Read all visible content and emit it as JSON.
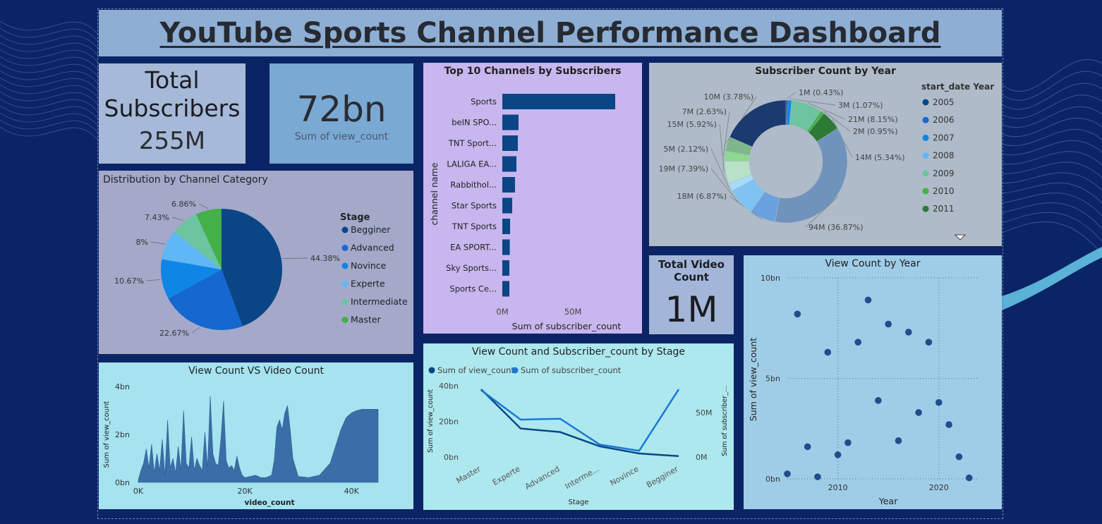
{
  "dashboard": {
    "title": "YouTube Sports Channel Performance Dashboard"
  },
  "cards": {
    "total_subscribers": {
      "label_line1": "Total",
      "label_line2": "Subscribers",
      "value": "255M"
    },
    "views": {
      "value": "72bn",
      "label": "Sum of view_count"
    },
    "total_video": {
      "label_line1": "Total Video",
      "label_line2": "Count",
      "value": "1M"
    }
  },
  "colors": {
    "navy": "#0a4685",
    "blue": "#1568cf",
    "mid_blue": "#0f86e6",
    "light_blue": "#60b6f4",
    "teal": "#62c095",
    "green": "#43b048",
    "dark_green": "#2d7a34"
  },
  "chart_data": [
    {
      "id": "category_pie",
      "type": "pie",
      "title": "Distribution by Channel Category",
      "legend_title": "Stage",
      "legend_position": "right",
      "labels": [
        "Begginer",
        "Advanced",
        "Novince",
        "Experte",
        "Intermediate",
        "Master"
      ],
      "values": [
        44.38,
        22.67,
        10.67,
        8,
        7.43,
        6.86
      ],
      "value_labels": [
        "44.38%",
        "22.67%",
        "10.67%",
        "8%",
        "7.43%",
        "6.86%"
      ],
      "colors": [
        "#0a4685",
        "#1568cf",
        "#0f86e6",
        "#5fb8f5",
        "#6cc4a0",
        "#43b048"
      ]
    },
    {
      "id": "top10_bar",
      "type": "bar",
      "orientation": "horizontal",
      "title": "Top 10 Channels by Subscribers",
      "xlabel": "Sum of subscriber_count",
      "ylabel": "channel name",
      "categories": [
        "Sports",
        "beIN SPO...",
        "TNT Sport...",
        "LALIGA EA...",
        "Rabbithol...",
        "Star Sports",
        "TNT Sports",
        "EA SPORT...",
        "Sky Sports...",
        "Sports Ce..."
      ],
      "values": [
        80,
        11.5,
        11,
        10,
        9,
        7,
        5.5,
        5.3,
        5,
        5
      ],
      "xlim": [
        0,
        85
      ],
      "xticks": [
        0,
        50
      ],
      "xtick_labels": [
        "0M",
        "50M"
      ],
      "color": "#0a4685"
    },
    {
      "id": "year_donut",
      "type": "pie",
      "style": "donut",
      "title": "Subscriber Count by Year",
      "legend_title": "start_date Year",
      "legend_position": "right",
      "legend": [
        "2005",
        "2006",
        "2007",
        "2008",
        "2009",
        "2010",
        "2011"
      ],
      "legend_colors": [
        "#0a4685",
        "#1568cf",
        "#0f86e6",
        "#60b6f4",
        "#6cc4a0",
        "#43b048",
        "#2d7a34"
      ],
      "values": [
        0.43,
        1.07,
        8.15,
        0.95,
        5.34,
        36.87,
        6.87,
        7.39,
        2.12,
        5.92,
        2.63,
        3.78,
        18.48
      ],
      "value_labels": [
        "1M (0.43%)",
        "3M (1.07%)",
        "21M (8.15%)",
        "2M (0.95%)",
        "14M (5.34%)",
        "94M (36.87%)",
        "18M (6.87%)",
        "19M (7.39%)",
        "5M (2.12%)",
        "15M (5.92%)",
        "7M (2.63%)",
        "10M (3.78%)",
        ""
      ],
      "colors": [
        "#0a4685",
        "#0f86e6",
        "#6cc4a0",
        "#43b048",
        "#2d7a34",
        "#6f93bb",
        "#6aa1df",
        "#7fc3f2",
        "#a8dbf7",
        "#b8e1c8",
        "#8fd88f",
        "#7db88a",
        "#1b3a6e"
      ]
    },
    {
      "id": "view_vs_video_area",
      "type": "area",
      "title": "View Count VS Video Count",
      "xlabel": "video_count",
      "ylabel": "Sum of view_count",
      "xlim": [
        0,
        45000
      ],
      "ylim": [
        0,
        4
      ],
      "xticks": [
        0,
        20000,
        40000
      ],
      "xtick_labels": [
        "0K",
        "20K",
        "40K"
      ],
      "yticks": [
        0,
        2,
        4
      ],
      "ytick_labels": [
        "0bn",
        "2bn",
        "4bn"
      ],
      "x": [
        0,
        500,
        1000,
        1500,
        2000,
        2500,
        3000,
        3500,
        4000,
        4500,
        5000,
        5500,
        6000,
        6500,
        7000,
        7500,
        8000,
        8500,
        9000,
        9500,
        10000,
        10500,
        11000,
        11500,
        12000,
        12500,
        13000,
        13500,
        14000,
        14500,
        15000,
        15500,
        16000,
        16500,
        17000,
        17500,
        18000,
        18500,
        19000,
        19500,
        20000,
        21000,
        22000,
        23000,
        24000,
        25000,
        25500,
        26000,
        26500,
        27000,
        27500,
        28000,
        28500,
        29000,
        30000,
        32000,
        34000,
        36000,
        37000,
        38000,
        39000,
        40000,
        41000,
        42000,
        43000,
        45000
      ],
      "y": [
        0.1,
        0.5,
        0.8,
        1.4,
        0.6,
        1.6,
        0.4,
        1.2,
        0.5,
        1.8,
        0.3,
        2.6,
        0.6,
        1.0,
        0.4,
        1.5,
        0.5,
        3.0,
        0.8,
        0.6,
        1.9,
        0.5,
        1.0,
        0.7,
        0.5,
        2.1,
        0.6,
        3.6,
        1.2,
        0.8,
        0.7,
        1.8,
        3.4,
        0.9,
        0.6,
        0.7,
        0.5,
        1.1,
        0.6,
        0.3,
        0.2,
        0.25,
        0.3,
        0.2,
        0.2,
        0.3,
        0.9,
        2.3,
        2.6,
        2.2,
        2.9,
        3.2,
        2.2,
        1.0,
        0.25,
        0.2,
        0.3,
        0.8,
        1.5,
        2.2,
        2.7,
        2.9,
        3.0,
        3.05,
        3.05,
        3.05
      ],
      "color": "#3b6ea7"
    },
    {
      "id": "stage_lines",
      "type": "line",
      "title": "View Count and Subscriber_count by Stage",
      "xlabel": "Stage",
      "ylabel": "Sum of view_count",
      "y2label": "Sum of subscriber_...",
      "legend_position": "top-left",
      "categories": [
        "Master",
        "Experte",
        "Advanced",
        "Interme...",
        "Novince",
        "Begginer"
      ],
      "series": [
        {
          "name": "Sum of view_count",
          "values": [
            38,
            16,
            14,
            6,
            2,
            0.5
          ],
          "axis": "left",
          "color": "#0a4685"
        },
        {
          "name": "Sum of subscriber_count",
          "values": [
            75,
            42,
            43,
            14,
            7,
            76
          ],
          "axis": "right",
          "color": "#1a78d4"
        }
      ],
      "ylim": [
        0,
        40
      ],
      "yticks": [
        0,
        20,
        40
      ],
      "ytick_labels": [
        "0bn",
        "20bn",
        "40bn"
      ],
      "y2lim": [
        0,
        80
      ],
      "y2ticks": [
        0,
        50
      ],
      "y2tick_labels": [
        "0M",
        "50M"
      ]
    },
    {
      "id": "year_scatter",
      "type": "scatter",
      "title": "View Count by Year",
      "xlabel": "Year",
      "ylabel": "Sum of view_count",
      "xlim": [
        2005,
        2024
      ],
      "ylim": [
        0,
        10
      ],
      "xticks": [
        2010,
        2020
      ],
      "xtick_labels": [
        "2010",
        "2020"
      ],
      "yticks": [
        0,
        5,
        10
      ],
      "ytick_labels": [
        "0bn",
        "5bn",
        "10bn"
      ],
      "grid": true,
      "x": [
        2005,
        2006,
        2007,
        2008,
        2009,
        2010,
        2011,
        2012,
        2013,
        2014,
        2015,
        2016,
        2017,
        2018,
        2019,
        2020,
        2021,
        2022,
        2023
      ],
      "y": [
        0.25,
        8.2,
        1.6,
        0.1,
        6.3,
        1.2,
        1.8,
        6.8,
        8.9,
        3.9,
        7.7,
        1.9,
        7.3,
        3.3,
        6.8,
        3.8,
        2.7,
        1.1,
        0.05
      ],
      "color": "#1f4e8c"
    }
  ]
}
